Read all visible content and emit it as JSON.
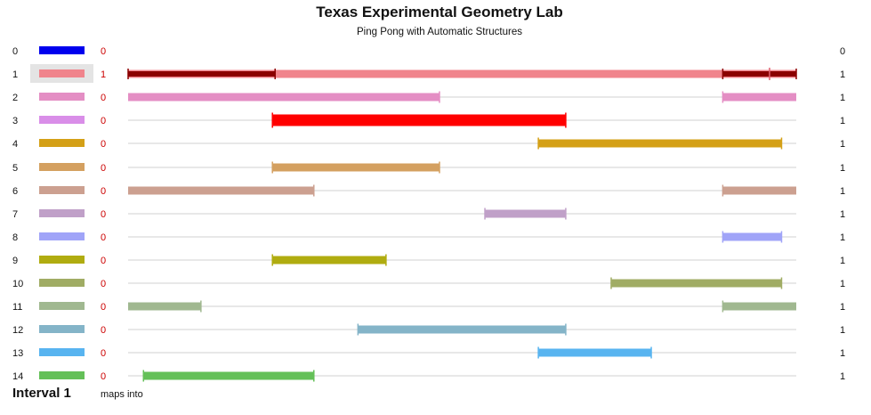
{
  "title": "Texas Experimental Geometry Lab",
  "subtitle": "Ping Pong with Automatic Structures",
  "footer": {
    "interval_label": "Interval 1",
    "maps_into": "maps into"
  },
  "selected_row": 1,
  "rows": [
    {
      "index": "0",
      "color": "#0000ee",
      "count": "0",
      "right": "0",
      "segments": []
    },
    {
      "index": "1",
      "color": "#f0848c",
      "count": "1",
      "right": "1",
      "segments": [
        [
          0.0,
          1.0
        ]
      ],
      "highlights": [
        [
          0.0,
          0.22
        ],
        [
          0.89,
          1.0
        ]
      ],
      "tick": 0.96
    },
    {
      "index": "2",
      "color": "#e48ec4",
      "count": "0",
      "right": "1",
      "segments": [
        [
          0.0,
          0.466
        ],
        [
          0.89,
          1.0
        ]
      ]
    },
    {
      "index": "3",
      "color": "#d98ee8",
      "count": "0",
      "right": "1",
      "segments": [
        [
          0.216,
          0.655
        ]
      ],
      "override_color": "#ff0000"
    },
    {
      "index": "4",
      "color": "#d4a017",
      "count": "0",
      "right": "1",
      "segments": [
        [
          0.614,
          0.978
        ]
      ]
    },
    {
      "index": "5",
      "color": "#d4a060",
      "count": "0",
      "right": "1",
      "segments": [
        [
          0.216,
          0.466
        ]
      ]
    },
    {
      "index": "6",
      "color": "#cca090",
      "count": "0",
      "right": "1",
      "segments": [
        [
          0.0,
          0.278
        ],
        [
          0.89,
          1.0
        ]
      ]
    },
    {
      "index": "7",
      "color": "#c0a0c8",
      "count": "0",
      "right": "1",
      "segments": [
        [
          0.534,
          0.655
        ]
      ]
    },
    {
      "index": "8",
      "color": "#a0a4f8",
      "count": "0",
      "right": "1",
      "segments": [
        [
          0.89,
          0.978
        ]
      ]
    },
    {
      "index": "9",
      "color": "#b0ac10",
      "count": "0",
      "right": "1",
      "segments": [
        [
          0.216,
          0.386
        ]
      ]
    },
    {
      "index": "10",
      "color": "#a0ac64",
      "count": "0",
      "right": "1",
      "segments": [
        [
          0.723,
          0.978
        ]
      ]
    },
    {
      "index": "11",
      "color": "#a0b890",
      "count": "0",
      "right": "1",
      "segments": [
        [
          0.0,
          0.109
        ],
        [
          0.89,
          1.0
        ]
      ]
    },
    {
      "index": "12",
      "color": "#84b4c8",
      "count": "0",
      "right": "1",
      "segments": [
        [
          0.344,
          0.655
        ]
      ]
    },
    {
      "index": "13",
      "color": "#58b4f0",
      "count": "0",
      "right": "1",
      "segments": [
        [
          0.614,
          0.783
        ]
      ]
    },
    {
      "index": "14",
      "color": "#64c058",
      "count": "0",
      "right": "1",
      "segments": [
        [
          0.023,
          0.278
        ]
      ]
    }
  ]
}
